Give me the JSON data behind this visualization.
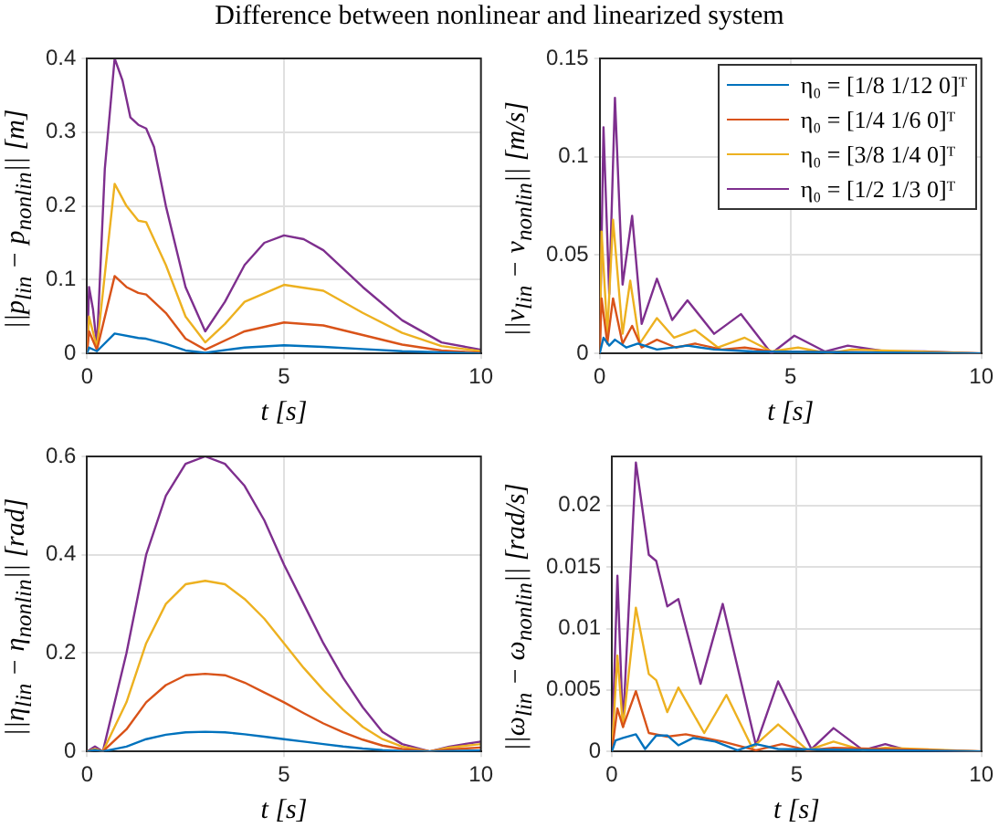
{
  "chart_data": [
    {
      "type": "line",
      "title": "Difference between nonlinear and linearized system",
      "xlabel": "t [s]",
      "ylabel": "||p$_{lin}$ − p$_{nonlin}$|| [m]",
      "xlim": [
        0,
        10
      ],
      "xticks": [
        0,
        5,
        10
      ],
      "ylim": [
        0,
        0.4
      ],
      "yticks": [
        0,
        0.1,
        0.2,
        0.3,
        0.4
      ],
      "grid": true,
      "legend": false,
      "marker": "none",
      "line_style": "solid",
      "series": [
        {
          "color": "#0072bd",
          "x": [
            0,
            0.05,
            0.25,
            0.7,
            1.3,
            1.5,
            2,
            2.5,
            3,
            4,
            5,
            6,
            7,
            8,
            10
          ],
          "values": [
            0,
            0.008,
            0.003,
            0.027,
            0.021,
            0.02,
            0.013,
            0.004,
            0.001,
            0.008,
            0.011,
            0.009,
            0.006,
            0.003,
            0
          ]
        },
        {
          "color": "#d95319",
          "x": [
            0,
            0.05,
            0.25,
            0.7,
            1,
            1.3,
            1.5,
            2,
            2.5,
            3,
            4,
            5,
            6,
            7,
            8,
            9,
            10
          ],
          "values": [
            0,
            0.03,
            0.005,
            0.105,
            0.09,
            0.082,
            0.08,
            0.055,
            0.02,
            0.005,
            0.03,
            0.042,
            0.038,
            0.025,
            0.012,
            0.004,
            0.001
          ]
        },
        {
          "color": "#edb120",
          "x": [
            0,
            0.05,
            0.25,
            0.7,
            1,
            1.3,
            1.5,
            2,
            2.5,
            3,
            3.5,
            4,
            5,
            6,
            7,
            8,
            9,
            10
          ],
          "values": [
            0,
            0.05,
            0.008,
            0.23,
            0.2,
            0.18,
            0.178,
            0.12,
            0.05,
            0.015,
            0.04,
            0.07,
            0.093,
            0.085,
            0.055,
            0.028,
            0.01,
            0.003
          ]
        },
        {
          "color": "#7e2f8e",
          "x": [
            0,
            0.05,
            0.15,
            0.25,
            0.45,
            0.7,
            0.9,
            1.1,
            1.3,
            1.5,
            1.7,
            2,
            2.5,
            3,
            3.5,
            4,
            4.5,
            5,
            5.5,
            6,
            7,
            8,
            9,
            10
          ],
          "values": [
            0,
            0.09,
            0.06,
            0.01,
            0.25,
            0.4,
            0.37,
            0.32,
            0.31,
            0.305,
            0.28,
            0.2,
            0.09,
            0.03,
            0.07,
            0.12,
            0.15,
            0.16,
            0.155,
            0.14,
            0.09,
            0.045,
            0.015,
            0.005
          ]
        }
      ]
    },
    {
      "type": "line",
      "xlabel": "t [s]",
      "ylabel": "||v$_{lin}$ − v$_{nonlin}$|| [m/s]",
      "xlim": [
        0,
        10
      ],
      "xticks": [
        0,
        5,
        10
      ],
      "ylim": [
        0,
        0.15
      ],
      "yticks": [
        0,
        0.05,
        0.1,
        0.15
      ],
      "grid": true,
      "legend": "top right",
      "marker": "none",
      "line_style": "solid",
      "series": [
        {
          "name": "η₀ = [1/8  1/12  0]ᵀ",
          "color": "#0072bd",
          "x": [
            0,
            0.1,
            0.25,
            0.4,
            0.7,
            1,
            1.5,
            2.3,
            3,
            4,
            10
          ],
          "values": [
            0,
            0.008,
            0.004,
            0.007,
            0.003,
            0.005,
            0.002,
            0.004,
            0.002,
            0.001,
            0
          ]
        },
        {
          "name": "η₀ = [1/4  1/6  0]ᵀ",
          "color": "#d95319",
          "x": [
            0,
            0.05,
            0.2,
            0.35,
            0.6,
            0.85,
            1.1,
            1.5,
            2,
            2.5,
            3.2,
            3.8,
            4.5,
            10
          ],
          "values": [
            0,
            0.028,
            0.005,
            0.028,
            0.005,
            0.014,
            0.003,
            0.007,
            0.003,
            0.005,
            0.002,
            0.003,
            0.001,
            0
          ]
        },
        {
          "name": "η₀ = [3/8  1/4  0]ᵀ",
          "color": "#edb120",
          "x": [
            0,
            0.05,
            0.2,
            0.35,
            0.6,
            0.8,
            1.05,
            1.5,
            1.95,
            2.5,
            3.1,
            3.8,
            4.5,
            5.2,
            6,
            6.6,
            10
          ],
          "values": [
            0,
            0.062,
            0.01,
            0.068,
            0.01,
            0.037,
            0.005,
            0.018,
            0.008,
            0.012,
            0.003,
            0.008,
            0.001,
            0.003,
            0,
            0.002,
            0
          ]
        },
        {
          "name": "η₀ = [1/2  1/3  0]ᵀ",
          "color": "#7e2f8e",
          "x": [
            0,
            0.1,
            0.25,
            0.4,
            0.6,
            0.85,
            1.1,
            1.5,
            1.9,
            2.3,
            3,
            3.7,
            4.5,
            5.1,
            5.9,
            6.5,
            7.5,
            8.5,
            10
          ],
          "values": [
            0,
            0.115,
            0.03,
            0.13,
            0.035,
            0.07,
            0.015,
            0.038,
            0.017,
            0.027,
            0.01,
            0.02,
            0,
            0.009,
            0.001,
            0.004,
            0.001,
            0.001,
            0
          ]
        }
      ]
    },
    {
      "type": "line",
      "xlabel": "t [s]",
      "ylabel": "||η$_{lin}$ − η$_{nonlin}$|| [rad]",
      "xlim": [
        0,
        10
      ],
      "xticks": [
        0,
        5,
        10
      ],
      "ylim": [
        0,
        0.6
      ],
      "yticks": [
        0,
        0.2,
        0.4,
        0.6
      ],
      "grid": true,
      "legend": false,
      "marker": "none",
      "line_style": "solid",
      "series": [
        {
          "color": "#0072bd",
          "x": [
            0,
            0.2,
            0.4,
            1,
            1.5,
            2,
            2.5,
            3,
            3.5,
            4,
            4.5,
            5,
            5.5,
            6,
            6.5,
            7,
            7.5,
            8,
            8.7,
            10
          ],
          "values": [
            0,
            0.003,
            0,
            0.01,
            0.025,
            0.034,
            0.039,
            0.04,
            0.039,
            0.035,
            0.03,
            0.025,
            0.02,
            0.015,
            0.01,
            0.006,
            0.003,
            0.001,
            0,
            0.002
          ]
        },
        {
          "color": "#d95319",
          "x": [
            0,
            0.2,
            0.4,
            1,
            1.5,
            2,
            2.5,
            3,
            3.5,
            4,
            4.5,
            5,
            5.5,
            6,
            6.5,
            7,
            7.5,
            8,
            8.7,
            9.2,
            10
          ],
          "values": [
            0,
            0.003,
            0,
            0.045,
            0.1,
            0.135,
            0.155,
            0.158,
            0.155,
            0.14,
            0.12,
            0.1,
            0.078,
            0.057,
            0.039,
            0.024,
            0.012,
            0.005,
            0,
            0.004,
            0.008
          ]
        },
        {
          "color": "#edb120",
          "x": [
            0,
            0.2,
            0.4,
            1,
            1.5,
            2,
            2.5,
            3,
            3.5,
            4,
            4.5,
            5,
            5.5,
            6,
            6.5,
            7,
            7.5,
            8,
            8.7,
            9.2,
            10
          ],
          "values": [
            0,
            0.005,
            0,
            0.1,
            0.22,
            0.3,
            0.34,
            0.347,
            0.34,
            0.31,
            0.27,
            0.22,
            0.17,
            0.125,
            0.085,
            0.05,
            0.025,
            0.01,
            0,
            0.008,
            0.015
          ]
        },
        {
          "color": "#7e2f8e",
          "x": [
            0,
            0.2,
            0.4,
            1,
            1.5,
            2,
            2.5,
            3,
            3.5,
            4,
            4.5,
            5,
            5.5,
            6,
            6.5,
            7,
            7.5,
            8,
            8.7,
            9.2,
            10
          ],
          "values": [
            0,
            0.01,
            0,
            0.2,
            0.4,
            0.52,
            0.585,
            0.6,
            0.585,
            0.54,
            0.47,
            0.38,
            0.3,
            0.22,
            0.15,
            0.09,
            0.04,
            0.015,
            0,
            0.01,
            0.02
          ]
        }
      ]
    },
    {
      "type": "line",
      "xlabel": "t [s]",
      "ylabel": "||ω$_{lin}$ − ω$_{nonlin}$|| [rad/s]",
      "xlim": [
        0,
        10
      ],
      "xticks": [
        0,
        5,
        10
      ],
      "ylim": [
        0,
        0.024
      ],
      "yticks": [
        0,
        0.005,
        0.01,
        0.015,
        0.02
      ],
      "grid": true,
      "legend": false,
      "marker": "none",
      "line_style": "solid",
      "series": [
        {
          "color": "#0072bd",
          "x": [
            0,
            0.1,
            0.3,
            0.65,
            0.9,
            1.2,
            1.5,
            1.8,
            2.2,
            2.8,
            3.4,
            3.9,
            4.5,
            10
          ],
          "values": [
            0,
            0.0009,
            0.0011,
            0.0014,
            0.0002,
            0.0013,
            0.0013,
            0.0005,
            0.0011,
            0.0008,
            0.0001,
            0.0006,
            0.0002,
            0
          ]
        },
        {
          "color": "#d95319",
          "x": [
            0,
            0.15,
            0.3,
            0.65,
            1,
            1.5,
            2,
            3,
            3.9,
            4.6,
            5.3,
            6,
            10
          ],
          "values": [
            0,
            0.0035,
            0.002,
            0.0049,
            0.0015,
            0.0012,
            0.0014,
            0.0008,
            0.0001,
            0.0006,
            0.0001,
            0.0003,
            0
          ]
        },
        {
          "color": "#edb120",
          "x": [
            0,
            0.15,
            0.3,
            0.65,
            1,
            1.2,
            1.5,
            1.8,
            2.5,
            3.1,
            3.8,
            4.5,
            5.3,
            6,
            6.8,
            7.4,
            10
          ],
          "values": [
            0,
            0.0078,
            0.002,
            0.0117,
            0.0063,
            0.0058,
            0.0032,
            0.0052,
            0.0015,
            0.0046,
            0.0003,
            0.0022,
            0.0001,
            0.0008,
            0.0001,
            0.0003,
            0
          ]
        },
        {
          "color": "#7e2f8e",
          "x": [
            0,
            0.15,
            0.3,
            0.65,
            1,
            1.2,
            1.5,
            1.8,
            2.4,
            3,
            3.9,
            4.5,
            5.4,
            6,
            6.8,
            7.4,
            8,
            10
          ],
          "values": [
            0,
            0.0143,
            0.002,
            0.0235,
            0.016,
            0.0155,
            0.0118,
            0.0124,
            0.0055,
            0.012,
            0.0005,
            0.0057,
            0.0002,
            0.0019,
            0.0001,
            0.0006,
            0.0001,
            0
          ]
        }
      ]
    }
  ]
}
